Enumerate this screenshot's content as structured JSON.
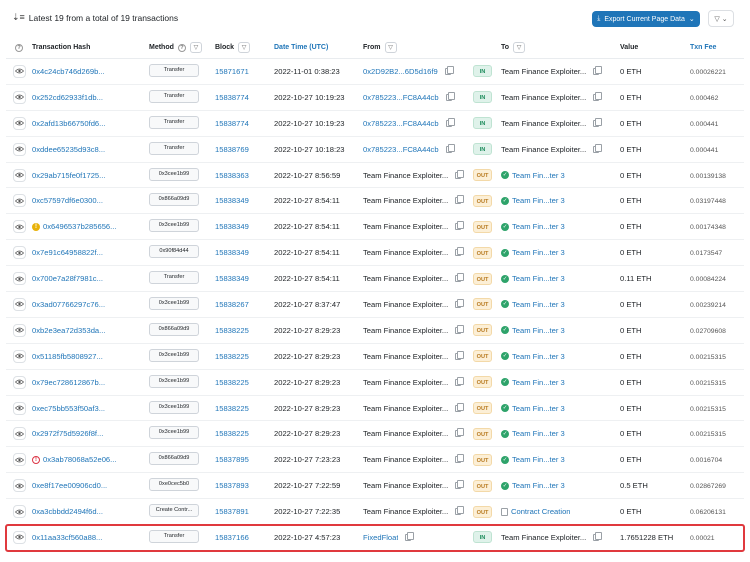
{
  "summary": {
    "text": "Latest 19 from a total of 19 transactions"
  },
  "export_button": {
    "label": "Export Current Page Data"
  },
  "columns": {
    "hash": "Transaction Hash",
    "method": "Method",
    "block": "Block",
    "date": "Date Time (UTC)",
    "from": "From",
    "to": "To",
    "value": "Value",
    "fee": "Txn Fee"
  },
  "rows": [
    {
      "hash": "0x4c24cb746d269b...",
      "method": "Transfer",
      "block": "15871671",
      "date": "2022-11-01 0:38:23",
      "from": "0x2D92B2...6D5d16f9",
      "from_link": true,
      "dir": "IN",
      "to": "Team Finance Exploiter...",
      "to_link": false,
      "value": "0 ETH",
      "fee": "0.00026221"
    },
    {
      "hash": "0x252cd62933f1db...",
      "method": "Transfer",
      "block": "15838774",
      "date": "2022-10-27 10:19:23",
      "from": "0x785223...FC8A44cb",
      "from_link": true,
      "dir": "IN",
      "to": "Team Finance Exploiter...",
      "to_link": false,
      "value": "0 ETH",
      "fee": "0.000462"
    },
    {
      "hash": "0x2afd13b66750fd6...",
      "method": "Transfer",
      "block": "15838774",
      "date": "2022-10-27 10:19:23",
      "from": "0x785223...FC8A44cb",
      "from_link": true,
      "dir": "IN",
      "to": "Team Finance Exploiter...",
      "to_link": false,
      "value": "0 ETH",
      "fee": "0.000441"
    },
    {
      "hash": "0xddee65235d93c8...",
      "method": "Transfer",
      "block": "15838769",
      "date": "2022-10-27 10:18:23",
      "from": "0x785223...FC8A44cb",
      "from_link": true,
      "dir": "IN",
      "to": "Team Finance Exploiter...",
      "to_link": false,
      "value": "0 ETH",
      "fee": "0.000441"
    },
    {
      "hash": "0x29ab715fe0f1725...",
      "method": "0x3cee1b99",
      "block": "15838363",
      "date": "2022-10-27 8:56:59",
      "from": "Team Finance Exploiter...",
      "from_link": false,
      "dir": "OUT",
      "to": "Team Fin...ter 3",
      "to_link": true,
      "value": "0 ETH",
      "fee": "0.00139138"
    },
    {
      "hash": "0xc57597df6e0300...",
      "method": "0x866a09d9",
      "block": "15838349",
      "date": "2022-10-27 8:54:11",
      "from": "Team Finance Exploiter...",
      "from_link": false,
      "dir": "OUT",
      "to": "Team Fin...ter 3",
      "to_link": true,
      "value": "0 ETH",
      "fee": "0.03197448"
    },
    {
      "hash": "0x6496537b285656...",
      "method": "0x3cee1b99",
      "block": "15838349",
      "date": "2022-10-27 8:54:11",
      "from": "Team Finance Exploiter...",
      "from_link": false,
      "dir": "OUT",
      "to": "Team Fin...ter 3",
      "to_link": true,
      "value": "0 ETH",
      "fee": "0.00174348",
      "warn": "yellow"
    },
    {
      "hash": "0x7e91c64958822f...",
      "method": "0x90f84d44",
      "block": "15838349",
      "date": "2022-10-27 8:54:11",
      "from": "Team Finance Exploiter...",
      "from_link": false,
      "dir": "OUT",
      "to": "Team Fin...ter 3",
      "to_link": true,
      "value": "0 ETH",
      "fee": "0.0173547"
    },
    {
      "hash": "0x700e7a28f7981c...",
      "method": "Transfer",
      "block": "15838349",
      "date": "2022-10-27 8:54:11",
      "from": "Team Finance Exploiter...",
      "from_link": false,
      "dir": "OUT",
      "to": "Team Fin...ter 3",
      "to_link": true,
      "value": "0.11 ETH",
      "fee": "0.00084224"
    },
    {
      "hash": "0x3ad07766297c76...",
      "method": "0x3cee1b99",
      "block": "15838267",
      "date": "2022-10-27 8:37:47",
      "from": "Team Finance Exploiter...",
      "from_link": false,
      "dir": "OUT",
      "to": "Team Fin...ter 3",
      "to_link": true,
      "value": "0 ETH",
      "fee": "0.00239214"
    },
    {
      "hash": "0xb2e3ea72d353da...",
      "method": "0x866a09d9",
      "block": "15838225",
      "date": "2022-10-27 8:29:23",
      "from": "Team Finance Exploiter...",
      "from_link": false,
      "dir": "OUT",
      "to": "Team Fin...ter 3",
      "to_link": true,
      "value": "0 ETH",
      "fee": "0.02709608"
    },
    {
      "hash": "0x51185fb5808927...",
      "method": "0x3cee1b99",
      "block": "15838225",
      "date": "2022-10-27 8:29:23",
      "from": "Team Finance Exploiter...",
      "from_link": false,
      "dir": "OUT",
      "to": "Team Fin...ter 3",
      "to_link": true,
      "value": "0 ETH",
      "fee": "0.00215315"
    },
    {
      "hash": "0x79ec728612867b...",
      "method": "0x3cee1b99",
      "block": "15838225",
      "date": "2022-10-27 8:29:23",
      "from": "Team Finance Exploiter...",
      "from_link": false,
      "dir": "OUT",
      "to": "Team Fin...ter 3",
      "to_link": true,
      "value": "0 ETH",
      "fee": "0.00215315"
    },
    {
      "hash": "0xec75bb553f50af3...",
      "method": "0x3cee1b99",
      "block": "15838225",
      "date": "2022-10-27 8:29:23",
      "from": "Team Finance Exploiter...",
      "from_link": false,
      "dir": "OUT",
      "to": "Team Fin...ter 3",
      "to_link": true,
      "value": "0 ETH",
      "fee": "0.00215315"
    },
    {
      "hash": "0x2972f75d5926f8f...",
      "method": "0x3cee1b99",
      "block": "15838225",
      "date": "2022-10-27 8:29:23",
      "from": "Team Finance Exploiter...",
      "from_link": false,
      "dir": "OUT",
      "to": "Team Fin...ter 3",
      "to_link": true,
      "value": "0 ETH",
      "fee": "0.00215315"
    },
    {
      "hash": "0x3ab78068a52e06...",
      "method": "0x866a09d9",
      "block": "15837895",
      "date": "2022-10-27 7:23:23",
      "from": "Team Finance Exploiter...",
      "from_link": false,
      "dir": "OUT",
      "to": "Team Fin...ter 3",
      "to_link": true,
      "value": "0 ETH",
      "fee": "0.0016704",
      "warn": "red"
    },
    {
      "hash": "0xe8f17ee00906cd0...",
      "method": "0xe0cec5b0",
      "block": "15837893",
      "date": "2022-10-27 7:22:59",
      "from": "Team Finance Exploiter...",
      "from_link": false,
      "dir": "OUT",
      "to": "Team Fin...ter 3",
      "to_link": true,
      "value": "0.5 ETH",
      "fee": "0.02867269"
    },
    {
      "hash": "0xa3cbbdd2494f6d...",
      "method": "Create Contr...",
      "block": "15837891",
      "date": "2022-10-27 7:22:35",
      "from": "Team Finance Exploiter...",
      "from_link": false,
      "dir": "OUT",
      "to": "Contract Creation",
      "to_link": true,
      "to_contract_creation": true,
      "value": "0 ETH",
      "fee": "0.06206131"
    },
    {
      "hash": "0x11aa33cf560a88...",
      "method": "Transfer",
      "block": "15837166",
      "date": "2022-10-27 4:57:23",
      "from": "FixedFloat",
      "from_link": true,
      "dir": "IN",
      "to": "Team Finance Exploiter...",
      "to_link": false,
      "value": "1.7651228 ETH",
      "fee": "0.00021",
      "highlighted": true
    }
  ]
}
